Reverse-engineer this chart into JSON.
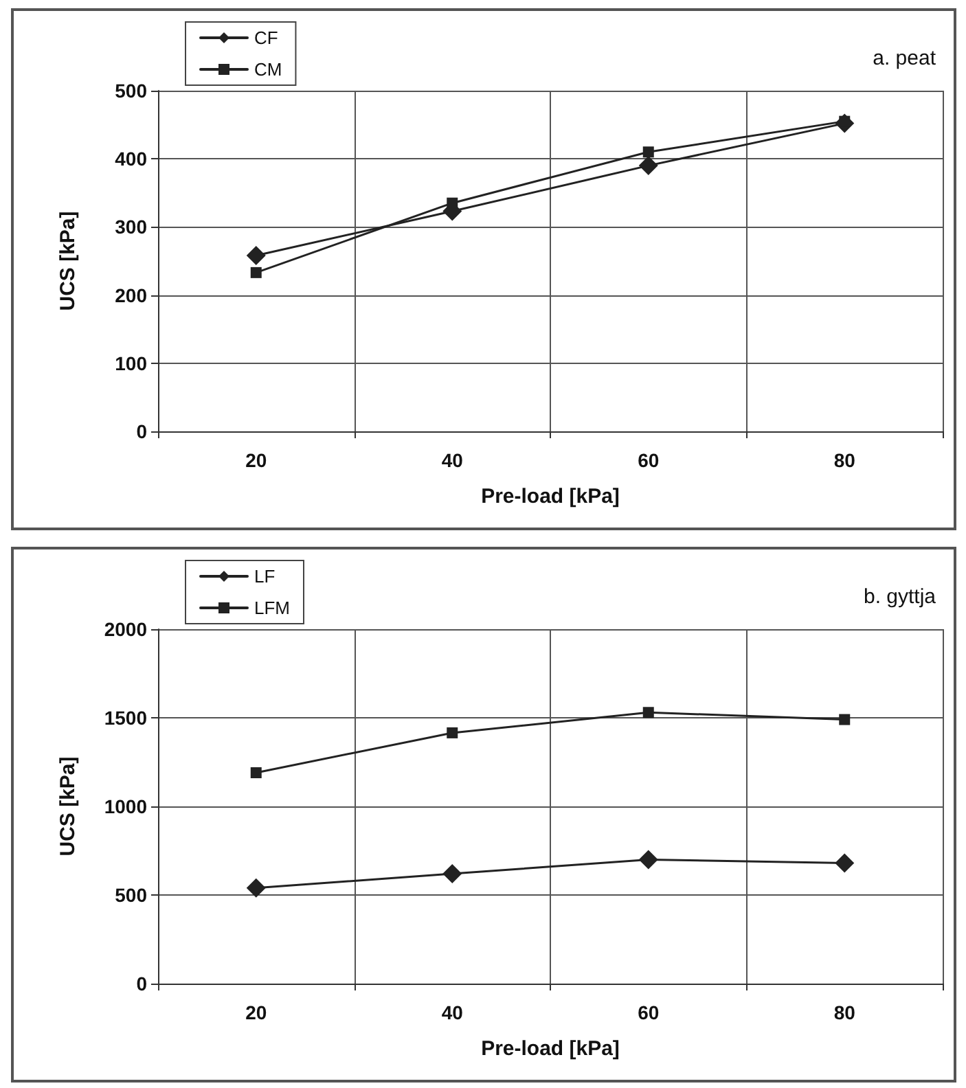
{
  "chart_data": [
    {
      "type": "line",
      "title": "a. peat",
      "xlabel": "Pre-load [kPa]",
      "ylabel": "UCS [kPa]",
      "categories": [
        "20",
        "40",
        "60",
        "80"
      ],
      "series": [
        {
          "name": "CF",
          "color": "#222222",
          "marker": "diamond",
          "values": [
            258,
            323,
            390,
            452
          ]
        },
        {
          "name": "CM",
          "color": "#222222",
          "marker": "square",
          "values": [
            233,
            335,
            410,
            455
          ]
        }
      ],
      "ylim": [
        0,
        500
      ],
      "yticks": [
        0,
        100,
        200,
        300,
        400,
        500
      ],
      "grid": true,
      "legend": "top left"
    },
    {
      "type": "line",
      "title": "b. gyttja",
      "xlabel": "Pre-load [kPa]",
      "ylabel": "UCS [kPa]",
      "categories": [
        "20",
        "40",
        "60",
        "80"
      ],
      "series": [
        {
          "name": "LF",
          "color": "#222222",
          "marker": "diamond",
          "values": [
            540,
            620,
            700,
            680
          ]
        },
        {
          "name": "LFM",
          "color": "#222222",
          "marker": "square",
          "values": [
            1190,
            1415,
            1530,
            1490
          ]
        }
      ],
      "ylim": [
        0,
        2000
      ],
      "yticks": [
        0,
        500,
        1000,
        1500,
        2000
      ],
      "grid": true,
      "legend": "top left"
    }
  ]
}
